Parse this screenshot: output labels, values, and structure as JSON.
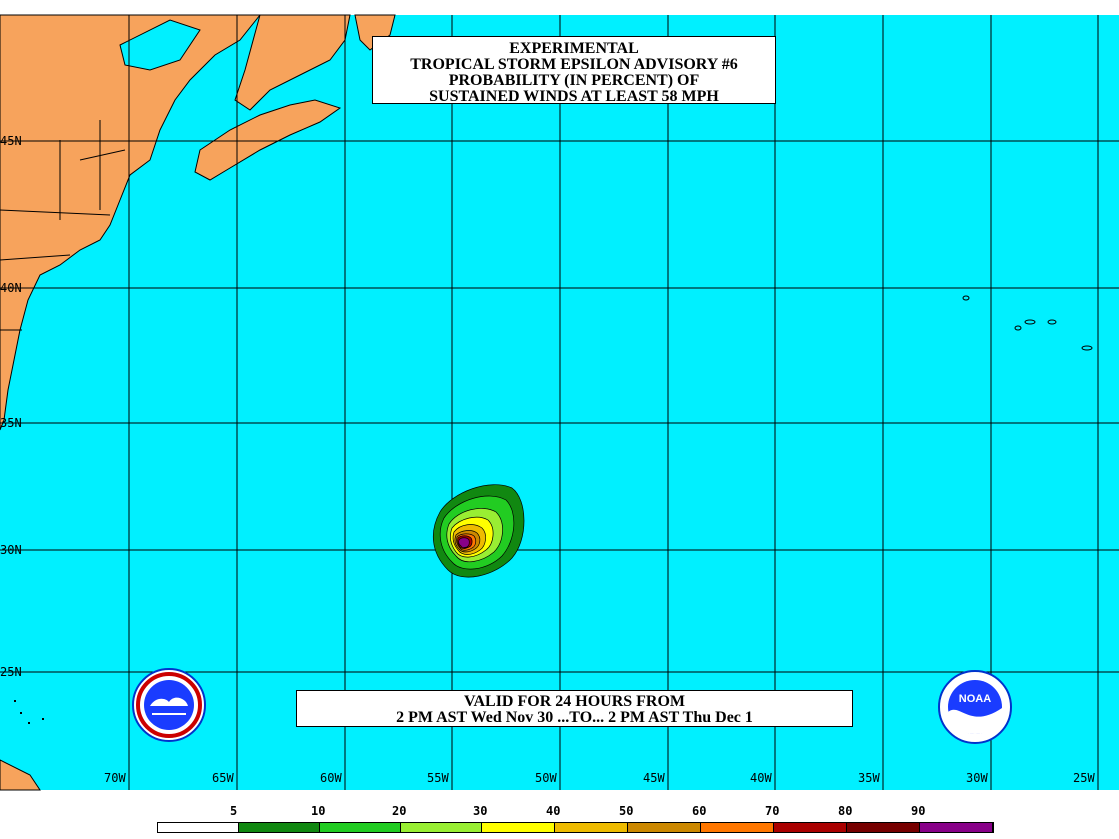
{
  "title_lines": [
    "EXPERIMENTAL",
    "TROPICAL STORM EPSILON ADVISORY #6",
    "PROBABILITY (IN PERCENT) OF",
    "SUSTAINED WINDS AT LEAST 58 MPH"
  ],
  "valid_lines": [
    "VALID FOR 24 HOURS FROM",
    "2 PM AST Wed Nov 30 ...TO... 2 PM AST Thu Dec 1"
  ],
  "lat_labels": [
    "45N",
    "40N",
    "35N",
    "30N",
    "25N"
  ],
  "lon_labels": [
    "70W",
    "65W",
    "60W",
    "55W",
    "50W",
    "45W",
    "40W",
    "35W",
    "30W",
    "25W"
  ],
  "legend": {
    "labels": [
      "5",
      "10",
      "20",
      "30",
      "40",
      "50",
      "60",
      "70",
      "80",
      "90"
    ],
    "colors": [
      "#ffffff",
      "#118811",
      "#22cc22",
      "#99ee33",
      "#ffff00",
      "#eebb00",
      "#cc8800",
      "#ff7700",
      "#aa0000",
      "#770000",
      "#880088"
    ]
  },
  "colors": {
    "ocean": "#00f0ff",
    "land": "#f7a35c",
    "grid": "#000000"
  },
  "logos": {
    "left": "nws-logo-icon",
    "right": "noaa-logo-icon",
    "right_text": "NOAA"
  }
}
